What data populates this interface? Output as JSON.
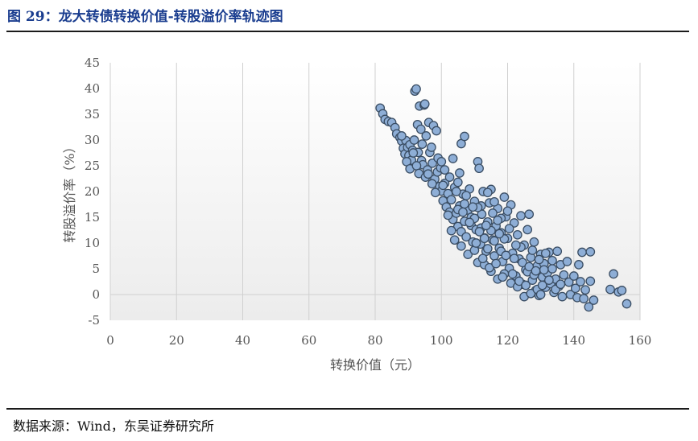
{
  "figure": {
    "title": "图 29：龙大转债转换价值-转股溢价率轨迹图",
    "source": "数据来源：Wind，东吴证券研究所"
  },
  "colors": {
    "title": "#1a3d8f",
    "point_fill": "#8eaed6",
    "point_stroke": "#3a4d63",
    "plot_bg_top": "#ffffff",
    "plot_bg_bottom": "#ececec",
    "grid": "#d0d0d0"
  },
  "chart_data": {
    "type": "scatter",
    "title": "",
    "xlabel": "转换价值（元）",
    "ylabel": "转股溢价率（%）",
    "xlim": [
      0,
      160
    ],
    "ylim": [
      -5,
      45
    ],
    "xticks": [
      0,
      20,
      40,
      60,
      80,
      100,
      120,
      140,
      160
    ],
    "yticks": [
      -5,
      0,
      5,
      10,
      15,
      20,
      25,
      30,
      35,
      40,
      45
    ],
    "grid": "vertical",
    "series": [
      {
        "points": [
          [
            81.5,
            36.2
          ],
          [
            82.3,
            35.1
          ],
          [
            83.0,
            34.0
          ],
          [
            84.0,
            33.6
          ],
          [
            85.0,
            33.4
          ],
          [
            86.0,
            32.4
          ],
          [
            86.5,
            31.2
          ],
          [
            87.5,
            30.5
          ],
          [
            88.0,
            29.8
          ],
          [
            88.5,
            28.4
          ],
          [
            89.0,
            27.3
          ],
          [
            89.3,
            29.9
          ],
          [
            89.8,
            28.6
          ],
          [
            90.2,
            27.0
          ],
          [
            90.5,
            29.1
          ],
          [
            91.0,
            26.1
          ],
          [
            91.3,
            28.0
          ],
          [
            91.8,
            30.0
          ],
          [
            92.0,
            39.5
          ],
          [
            92.4,
            39.9
          ],
          [
            92.8,
            33.0
          ],
          [
            93.0,
            27.6
          ],
          [
            93.4,
            36.6
          ],
          [
            93.8,
            32.1
          ],
          [
            94.0,
            26.0
          ],
          [
            94.4,
            25.2
          ],
          [
            94.8,
            36.8
          ],
          [
            95.0,
            37.0
          ],
          [
            95.4,
            30.8
          ],
          [
            95.8,
            24.2
          ],
          [
            96.2,
            33.4
          ],
          [
            96.5,
            27.6
          ],
          [
            97.0,
            28.6
          ],
          [
            97.3,
            25.5
          ],
          [
            97.6,
            32.8
          ],
          [
            98.0,
            22.4
          ],
          [
            98.5,
            31.8
          ],
          [
            99.0,
            26.5
          ],
          [
            99.5,
            21.0
          ],
          [
            100.0,
            20.1
          ],
          [
            88.0,
            30.8
          ],
          [
            89.5,
            25.8
          ],
          [
            90.5,
            24.4
          ],
          [
            91.5,
            27.5
          ],
          [
            92.5,
            25.0
          ],
          [
            93.2,
            23.5
          ],
          [
            94.2,
            29.2
          ],
          [
            95.2,
            22.8
          ],
          [
            96.0,
            23.4
          ],
          [
            97.2,
            21.5
          ],
          [
            98.2,
            19.8
          ],
          [
            98.8,
            23.8
          ],
          [
            99.8,
            24.6
          ],
          [
            100.5,
            18.2
          ],
          [
            101.0,
            21.6
          ],
          [
            101.5,
            17.0
          ],
          [
            102.0,
            19.6
          ],
          [
            102.5,
            16.0
          ],
          [
            103.0,
            18.4
          ],
          [
            103.5,
            14.6
          ],
          [
            104.0,
            20.8
          ],
          [
            104.5,
            15.8
          ],
          [
            105.0,
            13.2
          ],
          [
            105.5,
            17.2
          ],
          [
            106.0,
            12.2
          ],
          [
            106.5,
            19.5
          ],
          [
            107.0,
            14.2
          ],
          [
            107.5,
            11.2
          ],
          [
            108.0,
            16.4
          ],
          [
            108.5,
            20.5
          ],
          [
            109.0,
            13.4
          ],
          [
            109.5,
            10.2
          ],
          [
            110.0,
            18.1
          ],
          [
            110.5,
            12.6
          ],
          [
            111.0,
            25.8
          ],
          [
            111.4,
            24.5
          ],
          [
            111.8,
            9.8
          ],
          [
            112.2,
            15.6
          ],
          [
            112.6,
            20.0
          ],
          [
            113.0,
            11.0
          ],
          [
            113.5,
            8.4
          ],
          [
            114.0,
            14.1
          ],
          [
            114.5,
            17.8
          ],
          [
            115.0,
            20.4
          ],
          [
            115.5,
            10.6
          ],
          [
            116.0,
            7.5
          ],
          [
            116.5,
            13.3
          ],
          [
            117.0,
            16.7
          ],
          [
            117.5,
            9.0
          ],
          [
            118.0,
            12.0
          ],
          [
            118.5,
            6.4
          ],
          [
            119.0,
            18.9
          ],
          [
            119.5,
            15.1
          ],
          [
            120.0,
            10.9
          ],
          [
            120.5,
            5.1
          ],
          [
            121.0,
            17.4
          ],
          [
            121.5,
            8.0
          ],
          [
            122.0,
            13.9
          ],
          [
            122.5,
            3.6
          ],
          [
            123.0,
            11.6
          ],
          [
            123.5,
            6.9
          ],
          [
            124.0,
            15.3
          ],
          [
            124.5,
            2.0
          ],
          [
            125.0,
            9.6
          ],
          [
            125.5,
            4.8
          ],
          [
            126.0,
            12.6
          ],
          [
            126.5,
            15.6
          ],
          [
            127.0,
            7.2
          ],
          [
            127.5,
            2.8
          ],
          [
            128.0,
            10.2
          ],
          [
            128.5,
            0.8
          ],
          [
            129.0,
            5.6
          ],
          [
            129.5,
            -0.2
          ],
          [
            130.0,
            7.8
          ],
          [
            130.5,
            3.4
          ],
          [
            131.0,
            6.0
          ],
          [
            131.5,
            1.4
          ],
          [
            132.0,
            4.2
          ],
          [
            132.5,
            8.2
          ],
          [
            133.0,
            2.1
          ],
          [
            133.5,
            5.0
          ],
          [
            134.0,
            0.4
          ],
          [
            134.5,
            3.0
          ],
          [
            135.0,
            8.4
          ],
          [
            135.5,
            1.6
          ],
          [
            136.0,
            5.8
          ],
          [
            136.5,
            -0.4
          ],
          [
            137.0,
            3.8
          ],
          [
            138.0,
            6.4
          ],
          [
            138.5,
            2.4
          ],
          [
            139.0,
            0.0
          ],
          [
            140.0,
            3.6
          ],
          [
            140.5,
            1.2
          ],
          [
            141.0,
            -0.6
          ],
          [
            141.5,
            5.8
          ],
          [
            142.0,
            2.5
          ],
          [
            142.5,
            8.2
          ],
          [
            143.0,
            -0.8
          ],
          [
            143.5,
            0.9
          ],
          [
            144.5,
            -2.4
          ],
          [
            145.0,
            8.3
          ],
          [
            145.0,
            2.6
          ],
          [
            146.0,
            -1.1
          ],
          [
            151.0,
            1.0
          ],
          [
            152.0,
            4.0
          ],
          [
            153.5,
            0.5
          ],
          [
            154.5,
            0.8
          ],
          [
            156.0,
            -1.8
          ],
          [
            100.0,
            25.8
          ],
          [
            101.0,
            24.2
          ],
          [
            100.5,
            21.2
          ],
          [
            102.5,
            22.8
          ],
          [
            103.5,
            26.4
          ],
          [
            104.5,
            20.0
          ],
          [
            105.5,
            23.6
          ],
          [
            106.0,
            29.3
          ],
          [
            107.0,
            30.7
          ],
          [
            105.0,
            21.8
          ],
          [
            102.0,
            15.4
          ],
          [
            103.0,
            12.4
          ],
          [
            104.0,
            10.6
          ],
          [
            105.0,
            16.5
          ],
          [
            106.0,
            9.4
          ],
          [
            107.0,
            17.6
          ],
          [
            108.0,
            7.8
          ],
          [
            109.0,
            15.0
          ],
          [
            110.0,
            8.6
          ],
          [
            111.0,
            6.2
          ],
          [
            112.0,
            17.2
          ],
          [
            113.0,
            5.8
          ],
          [
            114.0,
            19.8
          ],
          [
            115.0,
            4.5
          ],
          [
            116.0,
            18.0
          ],
          [
            117.0,
            3.0
          ],
          [
            118.0,
            14.8
          ],
          [
            119.0,
            4.0
          ],
          [
            120.0,
            16.2
          ],
          [
            121.0,
            2.2
          ],
          [
            122.0,
            7.0
          ],
          [
            123.0,
            1.5
          ],
          [
            124.0,
            9.2
          ],
          [
            125.0,
            -0.4
          ],
          [
            126.0,
            4.4
          ],
          [
            127.0,
            0.2
          ],
          [
            128.0,
            3.8
          ],
          [
            129.0,
            1.0
          ],
          [
            130.0,
            0.0
          ],
          [
            131.0,
            4.8
          ],
          [
            110.0,
            14.8
          ],
          [
            111.0,
            16.9
          ],
          [
            112.0,
            12.9
          ],
          [
            113.0,
            10.9
          ],
          [
            114.0,
            8.9
          ],
          [
            115.0,
            12.4
          ],
          [
            116.0,
            10.4
          ],
          [
            117.0,
            14.4
          ],
          [
            118.0,
            8.4
          ],
          [
            119.0,
            10.8
          ],
          [
            106.5,
            16.0
          ],
          [
            107.5,
            19.2
          ],
          [
            108.5,
            14.0
          ],
          [
            109.5,
            17.0
          ],
          [
            110.5,
            10.0
          ],
          [
            111.5,
            12.2
          ],
          [
            112.5,
            7.0
          ],
          [
            113.5,
            13.4
          ],
          [
            114.5,
            5.2
          ],
          [
            115.5,
            15.8
          ],
          [
            116.5,
            6.0
          ],
          [
            117.5,
            11.8
          ],
          [
            118.5,
            3.4
          ],
          [
            119.5,
            7.6
          ],
          [
            120.5,
            12.8
          ],
          [
            121.5,
            4.0
          ],
          [
            122.5,
            9.6
          ],
          [
            123.5,
            2.6
          ],
          [
            124.5,
            6.2
          ],
          [
            125.5,
            1.8
          ],
          [
            126.5,
            5.4
          ],
          [
            127.5,
            8.6
          ],
          [
            128.5,
            4.6
          ],
          [
            129.5,
            6.8
          ],
          [
            130.5,
            1.8
          ],
          [
            131.5,
            8.0
          ],
          [
            132.5,
            2.8
          ],
          [
            133.5,
            6.6
          ],
          [
            134.5,
            1.0
          ],
          [
            136.0,
            2.0
          ]
        ]
      }
    ]
  }
}
